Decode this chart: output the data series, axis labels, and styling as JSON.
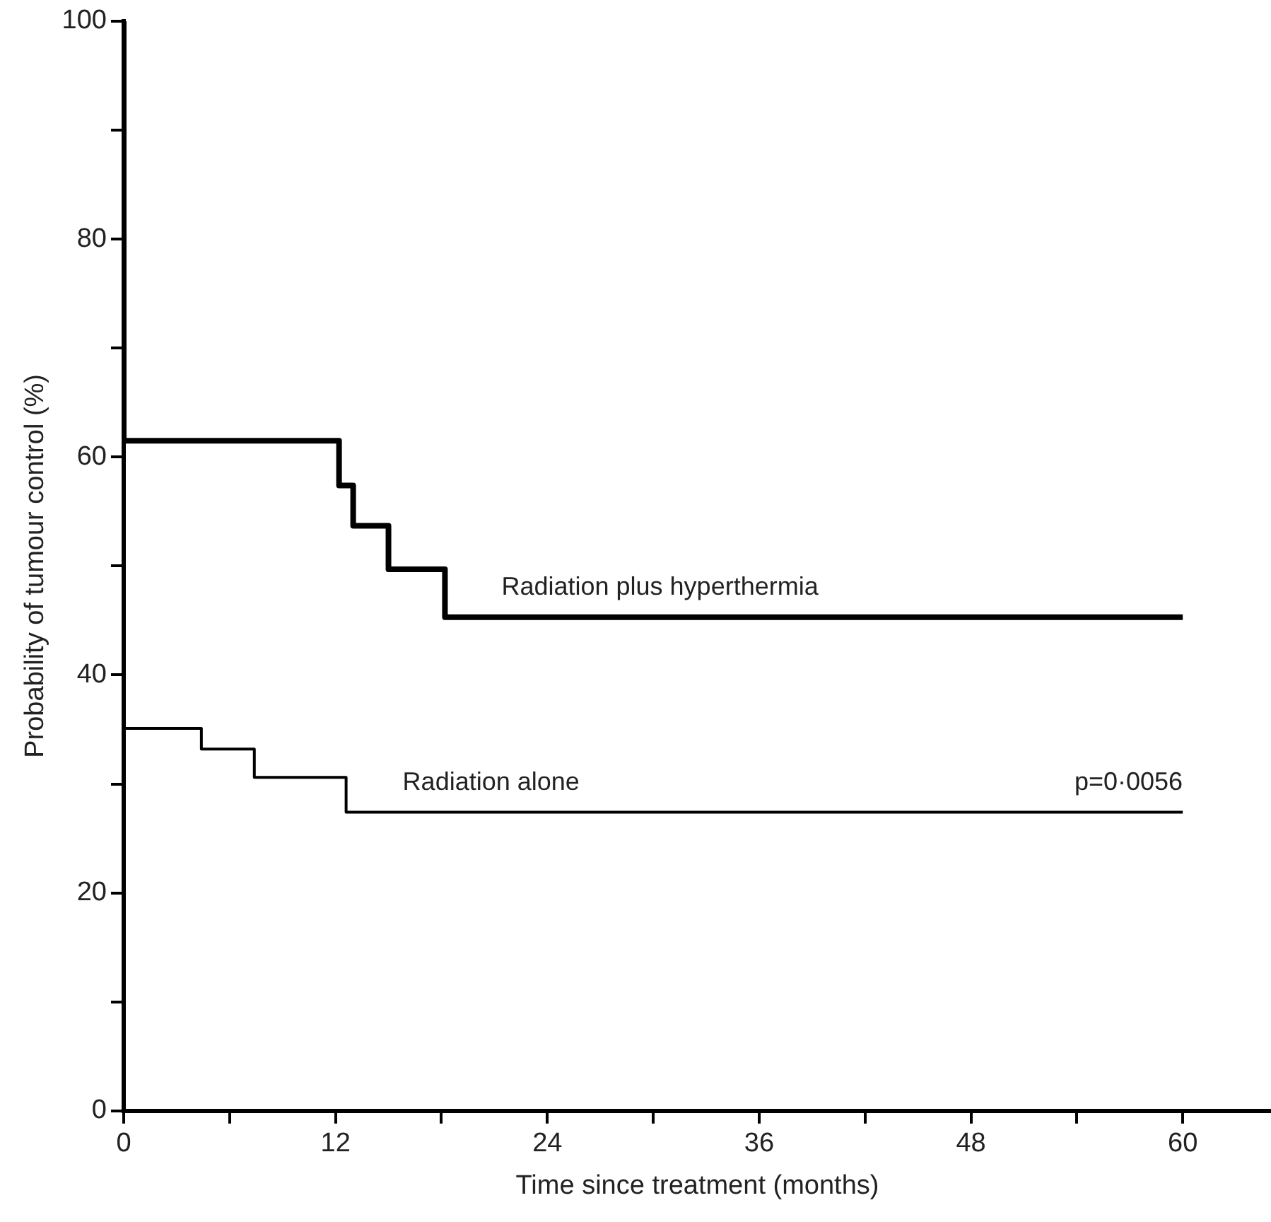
{
  "chart_data": {
    "type": "step",
    "xlabel": "Time since treatment (months)",
    "ylabel": "Probability of tumour control (%)",
    "xlim": [
      0,
      65
    ],
    "xticks": [
      0,
      {
        "value": 6,
        "label": null
      },
      12,
      {
        "value": 18,
        "label": null
      },
      24,
      {
        "value": 30,
        "label": null
      },
      36,
      {
        "value": 42,
        "label": null
      },
      48,
      {
        "value": 54,
        "label": null
      },
      60
    ],
    "ylim": [
      0,
      100
    ],
    "yticks": [
      0,
      {
        "value": 10,
        "label": null
      },
      20,
      {
        "value": 30,
        "label": null
      },
      40,
      {
        "value": 50,
        "label": null
      },
      60,
      {
        "value": 70,
        "label": null
      },
      80,
      {
        "value": 90,
        "label": null
      },
      100
    ],
    "grid": false,
    "legend": false,
    "marker": "none",
    "line_style": "solid",
    "series": [
      {
        "name": "Radiation plus hyperthermia",
        "color": "#000000",
        "x": [
          0,
          0,
          12.2,
          13,
          15,
          18.2,
          60
        ],
        "values": [
          100,
          61.5,
          57.4,
          53.7,
          49.7,
          45.3,
          45.3
        ]
      },
      {
        "name": "Radiation alone",
        "color": "#000000",
        "x": [
          0,
          0,
          4.4,
          7.4,
          12.6,
          60
        ],
        "values": [
          100,
          35.1,
          33.2,
          30.6,
          27.4,
          27.4
        ]
      }
    ],
    "annotations": [
      {
        "text": "p=0·0056",
        "x": 60,
        "y": 27.4
      }
    ]
  }
}
